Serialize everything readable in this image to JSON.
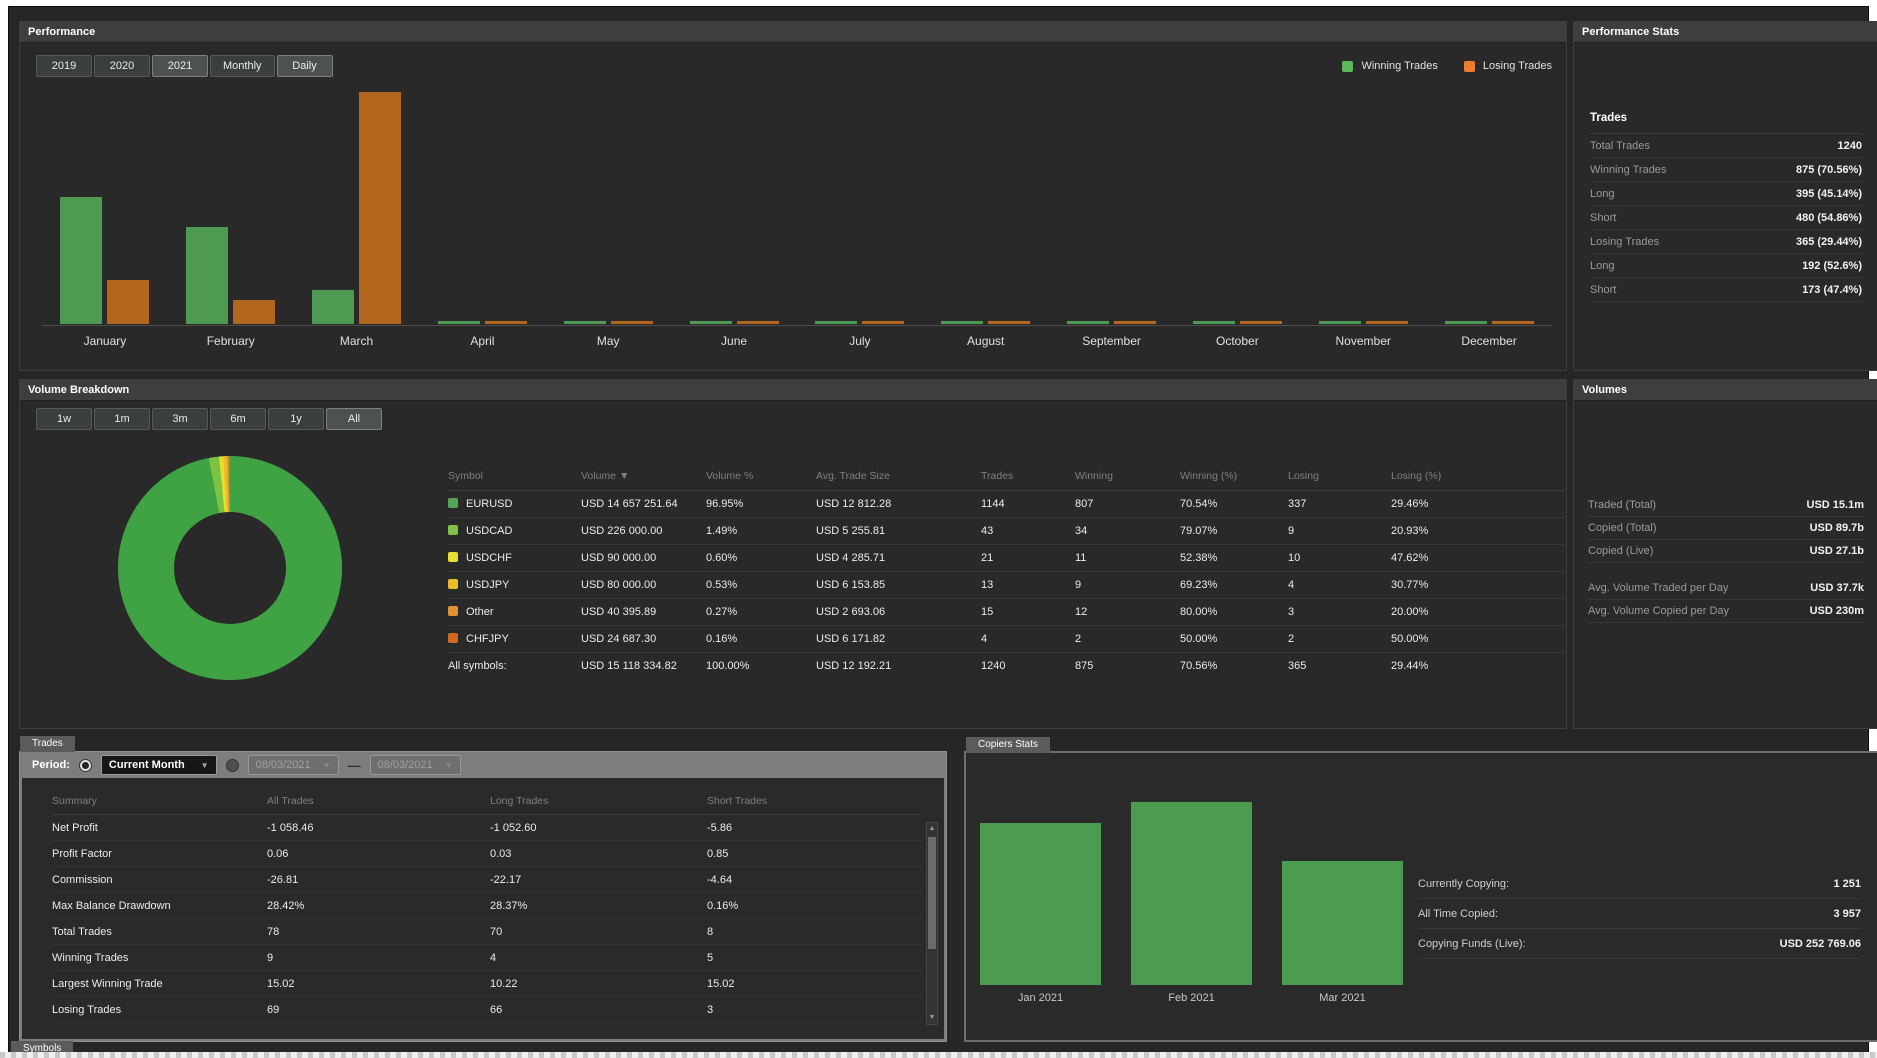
{
  "theme": {
    "page_bg": "#ffffff",
    "dashboard_bg": "#262626",
    "panel_bg": "#292929",
    "panel_header_bg": "#3e3e3e",
    "bar_green": "#4f9a52",
    "bar_orange": "#b2661e",
    "legend_green": "#5cb85c",
    "legend_orange": "#ed7d2e",
    "copiers_bar_green": "#4b9c50",
    "muted_text": "#9a9a9a",
    "body_text": "#ececec"
  },
  "icons": {
    "caret_down": "▼",
    "scroll_up": "▲",
    "scroll_down": "▼"
  },
  "performance": {
    "title": "Performance",
    "year_buttons": [
      "2019",
      "2020",
      "2021"
    ],
    "selected_year": "2021",
    "mode_buttons": [
      "Monthly",
      "Daily"
    ],
    "selected_mode": "Daily",
    "legend": [
      {
        "label": "Winning Trades",
        "color": "#5cb85c"
      },
      {
        "label": "Losing Trades",
        "color": "#ed7d2e"
      }
    ]
  },
  "performance_stats": {
    "title": "Performance Stats",
    "section_title": "Trades",
    "rows": [
      {
        "label": "Total Trades",
        "value": "1240"
      },
      {
        "label": "Winning Trades",
        "value": "875 (70.56%)"
      },
      {
        "label": "Long",
        "value": "395 (45.14%)"
      },
      {
        "label": "Short",
        "value": "480 (54.86%)"
      },
      {
        "label": "Losing Trades",
        "value": "365 (29.44%)"
      },
      {
        "label": "Long",
        "value": "192 (52.6%)"
      },
      {
        "label": "Short",
        "value": "173 (47.4%)"
      }
    ]
  },
  "volume_breakdown": {
    "title": "Volume Breakdown",
    "range_buttons": [
      "1w",
      "1m",
      "3m",
      "6m",
      "1y",
      "All"
    ],
    "selected_range": "All",
    "table": {
      "columns": [
        "Symbol",
        "Volume ▼",
        "Volume %",
        "Avg. Trade Size",
        "Trades",
        "Winning",
        "Winning (%)",
        "Losing",
        "Losing (%)"
      ],
      "rows": [
        {
          "color": "#53a653",
          "cells": [
            "EURUSD",
            "USD 14 657 251.64",
            "96.95%",
            "USD 12 812.28",
            "1144",
            "807",
            "70.54%",
            "337",
            "29.46%"
          ]
        },
        {
          "color": "#7dc243",
          "cells": [
            "USDCAD",
            "USD 226 000.00",
            "1.49%",
            "USD 5 255.81",
            "43",
            "34",
            "79.07%",
            "9",
            "20.93%"
          ]
        },
        {
          "color": "#e6df2e",
          "cells": [
            "USDCHF",
            "USD 90 000.00",
            "0.60%",
            "USD 4 285.71",
            "21",
            "11",
            "52.38%",
            "10",
            "47.62%"
          ]
        },
        {
          "color": "#eabc2b",
          "cells": [
            "USDJPY",
            "USD 80 000.00",
            "0.53%",
            "USD 6 153.85",
            "13",
            "9",
            "69.23%",
            "4",
            "30.77%"
          ]
        },
        {
          "color": "#e2902f",
          "cells": [
            "Other",
            "USD 40 395.89",
            "0.27%",
            "USD 2 693.06",
            "15",
            "12",
            "80.00%",
            "3",
            "20.00%"
          ]
        },
        {
          "color": "#d2691e",
          "cells": [
            "CHFJPY",
            "USD 24 687.30",
            "0.16%",
            "USD 6 171.82",
            "4",
            "2",
            "50.00%",
            "2",
            "50.00%"
          ]
        }
      ],
      "total_row": {
        "cells": [
          "All symbols:",
          "USD 15 118 334.82",
          "100.00%",
          "USD 12 192.21",
          "1240",
          "875",
          "70.56%",
          "365",
          "29.44%"
        ]
      }
    }
  },
  "volumes": {
    "title": "Volumes",
    "rows_group1": [
      {
        "label": "Traded (Total)",
        "value": "USD 15.1m"
      },
      {
        "label": "Copied (Total)",
        "value": "USD 89.7b"
      },
      {
        "label": "Copied (Live)",
        "value": "USD 27.1b"
      }
    ],
    "rows_group2": [
      {
        "label": "Avg. Volume Traded per Day",
        "value": "USD 37.7k"
      },
      {
        "label": "Avg. Volume Copied per Day",
        "value": "USD 230m"
      }
    ]
  },
  "trades_panel": {
    "tab": "Trades",
    "period_label": "Period:",
    "period_value": "Current Month",
    "date_from": "08/03/2021",
    "date_separator": "—",
    "date_to": "08/03/2021",
    "table": {
      "columns": [
        "Summary",
        "All Trades",
        "Long Trades",
        "Short Trades"
      ],
      "rows": [
        [
          "Net Profit",
          "-1 058.46",
          "-1 052.60",
          "-5.86"
        ],
        [
          "Profit Factor",
          "0.06",
          "0.03",
          "0.85"
        ],
        [
          "Commission",
          "-26.81",
          "-22.17",
          "-4.64"
        ],
        [
          "Max Balance Drawdown",
          "28.42%",
          "28.37%",
          "0.16%"
        ],
        [
          "Total Trades",
          "78",
          "70",
          "8"
        ],
        [
          "Winning Trades",
          "9",
          "4",
          "5"
        ],
        [
          "Largest Winning Trade",
          "15.02",
          "10.22",
          "15.02"
        ],
        [
          "Losing Trades",
          "69",
          "66",
          "3"
        ]
      ]
    }
  },
  "copiers_stats": {
    "tab": "Copiers Stats",
    "rows": [
      {
        "label": "Currently Copying:",
        "value": "1 251"
      },
      {
        "label": "All Time Copied:",
        "value": "3 957"
      },
      {
        "label": "Copying Funds (Live):",
        "value": "USD 252 769.06"
      }
    ]
  },
  "symbols_panel": {
    "tab": "Symbols"
  },
  "chart_data": [
    {
      "id": "performance-monthly",
      "type": "bar",
      "title": "Performance",
      "categories": [
        "January",
        "February",
        "March",
        "April",
        "May",
        "June",
        "July",
        "August",
        "September",
        "October",
        "November",
        "December"
      ],
      "series": [
        {
          "name": "Winning Trades",
          "color": "#4f9a52",
          "values_relative": [
            127,
            97,
            34,
            3,
            3,
            3,
            3,
            3,
            3,
            3,
            3,
            3
          ]
        },
        {
          "name": "Losing Trades",
          "color": "#b2661e",
          "values_relative": [
            44,
            24,
            232,
            3,
            3,
            3,
            3,
            3,
            3,
            3,
            3,
            3
          ]
        }
      ],
      "xlabel": "",
      "ylabel": "",
      "axis_values_visible": false,
      "legend_position": "top-right"
    },
    {
      "id": "volume-donut",
      "type": "pie",
      "labels": [
        "EURUSD",
        "USDCAD",
        "USDCHF",
        "USDJPY",
        "Other",
        "CHFJPY"
      ],
      "values_pct": [
        96.95,
        1.49,
        0.6,
        0.53,
        0.27,
        0.16
      ],
      "colors": [
        "#3fa344",
        "#7dc243",
        "#e6df2e",
        "#eabc2b",
        "#e2902f",
        "#d2691e"
      ],
      "donut": true
    },
    {
      "id": "copiers-monthly",
      "type": "bar",
      "categories": [
        "Jan 2021",
        "Feb 2021",
        "Mar 2021"
      ],
      "values_relative": [
        162,
        183,
        124
      ],
      "color": "#4b9c50",
      "axis_values_visible": false
    }
  ]
}
